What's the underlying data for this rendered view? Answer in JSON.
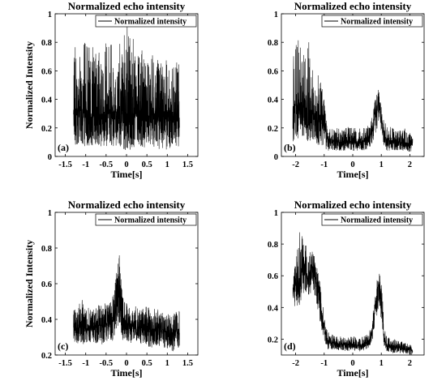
{
  "figure": {
    "background": "#ffffff",
    "line_color": "#000000"
  },
  "chart_data": [
    {
      "type": "line",
      "panel_label": "(a)",
      "title": "Normalized echo intensity",
      "xlabel": "Time[s]",
      "ylabel": "Normalized Intensity",
      "xlim": [
        -1.75,
        1.75
      ],
      "ylim": [
        0,
        1
      ],
      "xticks": [
        -1.5,
        -1,
        -0.5,
        0,
        0.5,
        1,
        1.5
      ],
      "xtick_labels": [
        "-1.5",
        "-1",
        "-0.5",
        "0",
        "0.5",
        "1",
        "1.5"
      ],
      "yticks": [
        0,
        0.2,
        0.4,
        0.6,
        0.8,
        1
      ],
      "ytick_labels": [
        "0",
        "0.2",
        "0.4",
        "0.6",
        "0.8",
        "1"
      ],
      "grid": false,
      "legend_position": "top-right",
      "series": [
        {
          "name": "Normalized intensity",
          "x": [
            -1.3,
            -1.2,
            -1.1,
            -1.0,
            -0.9,
            -0.8,
            -0.7,
            -0.6,
            -0.5,
            -0.4,
            -0.3,
            -0.2,
            -0.1,
            0.0,
            0.1,
            0.2,
            0.3,
            0.4,
            0.5,
            0.6,
            0.7,
            0.8,
            0.9,
            1.0,
            1.1,
            1.2,
            1.3
          ],
          "y": [
            0.28,
            0.33,
            0.27,
            0.34,
            0.29,
            0.3,
            0.31,
            0.28,
            0.33,
            0.3,
            0.32,
            0.34,
            0.36,
            0.3,
            0.28,
            0.3,
            0.29,
            0.31,
            0.27,
            0.3,
            0.29,
            0.28,
            0.3,
            0.27,
            0.28,
            0.26,
            0.27
          ],
          "y_min": [
            0.08,
            0.08,
            0.06,
            0.07,
            0.07,
            0.08,
            0.06,
            0.07,
            0.07,
            0.06,
            0.06,
            0.05,
            0.05,
            0.03,
            0.05,
            0.06,
            0.05,
            0.06,
            0.05,
            0.05,
            0.06,
            0.05,
            0.05,
            0.04,
            0.05,
            0.06,
            0.07
          ],
          "y_max": [
            0.75,
            0.8,
            0.72,
            0.85,
            0.75,
            0.78,
            0.72,
            0.75,
            0.82,
            0.78,
            0.82,
            0.88,
            0.94,
            0.96,
            0.9,
            0.78,
            0.8,
            0.75,
            0.72,
            0.73,
            0.7,
            0.7,
            0.72,
            0.68,
            0.66,
            0.65,
            0.68
          ]
        }
      ]
    },
    {
      "type": "line",
      "panel_label": "(b)",
      "title": "Normalized echo intensity",
      "xlabel": "Time[s]",
      "ylabel": "",
      "xlim": [
        -2.5,
        2.5
      ],
      "ylim": [
        0,
        1
      ],
      "xticks": [
        -2,
        -1,
        0,
        1,
        2
      ],
      "xtick_labels": [
        "-2",
        "-1",
        "0",
        "1",
        "2"
      ],
      "yticks": [
        0,
        0.2,
        0.4,
        0.6,
        0.8,
        1
      ],
      "ytick_labels": [
        "0",
        "0.2",
        "0.4",
        "0.6",
        "0.8",
        "1"
      ],
      "grid": false,
      "legend_position": "top-right",
      "series": [
        {
          "name": "Normalized intensity",
          "x": [
            -2.1,
            -2.0,
            -1.9,
            -1.8,
            -1.7,
            -1.6,
            -1.5,
            -1.4,
            -1.3,
            -1.2,
            -1.1,
            -1.0,
            -0.9,
            -0.8,
            -0.6,
            -0.4,
            -0.2,
            0.0,
            0.2,
            0.4,
            0.6,
            0.7,
            0.8,
            0.9,
            1.0,
            1.1,
            1.2,
            1.4,
            1.6,
            1.8,
            2.0,
            2.1
          ],
          "y": [
            0.33,
            0.35,
            0.36,
            0.38,
            0.34,
            0.35,
            0.33,
            0.32,
            0.3,
            0.29,
            0.27,
            0.2,
            0.12,
            0.11,
            0.1,
            0.1,
            0.11,
            0.1,
            0.1,
            0.11,
            0.14,
            0.2,
            0.3,
            0.38,
            0.3,
            0.14,
            0.11,
            0.1,
            0.1,
            0.1,
            0.09,
            0.08
          ],
          "y_min": [
            0.1,
            0.12,
            0.1,
            0.12,
            0.1,
            0.11,
            0.1,
            0.1,
            0.09,
            0.08,
            0.08,
            0.06,
            0.04,
            0.04,
            0.04,
            0.04,
            0.04,
            0.04,
            0.04,
            0.04,
            0.06,
            0.1,
            0.16,
            0.22,
            0.18,
            0.06,
            0.04,
            0.04,
            0.04,
            0.04,
            0.03,
            0.03
          ],
          "y_max": [
            0.72,
            0.78,
            0.82,
            0.85,
            0.75,
            0.95,
            0.72,
            0.62,
            0.58,
            0.57,
            0.5,
            0.4,
            0.22,
            0.2,
            0.2,
            0.2,
            0.21,
            0.2,
            0.2,
            0.2,
            0.24,
            0.3,
            0.44,
            0.48,
            0.4,
            0.24,
            0.22,
            0.2,
            0.19,
            0.2,
            0.18,
            0.15
          ]
        }
      ]
    },
    {
      "type": "line",
      "panel_label": "(c)",
      "title": "Normalized echo intensity",
      "xlabel": "Time[s]",
      "ylabel": "Normalized Intensity",
      "xlim": [
        -1.75,
        1.75
      ],
      "ylim": [
        0.2,
        1
      ],
      "xticks": [
        -1.5,
        -1,
        -0.5,
        0,
        0.5,
        1,
        1.5
      ],
      "xtick_labels": [
        "-1.5",
        "-1",
        "-0.5",
        "0",
        "0.5",
        "1",
        "1.5"
      ],
      "yticks": [
        0.2,
        0.4,
        0.6,
        0.8,
        1
      ],
      "ytick_labels": [
        "0.2",
        "0.4",
        "0.6",
        "0.8",
        "1"
      ],
      "grid": false,
      "legend_position": "top-right",
      "series": [
        {
          "name": "Normalized intensity",
          "x": [
            -1.3,
            -1.2,
            -1.1,
            -1.0,
            -0.9,
            -0.8,
            -0.7,
            -0.6,
            -0.5,
            -0.4,
            -0.3,
            -0.25,
            -0.2,
            -0.15,
            -0.1,
            0.0,
            0.1,
            0.2,
            0.3,
            0.4,
            0.5,
            0.6,
            0.7,
            0.8,
            0.9,
            1.0,
            1.1,
            1.2,
            1.3
          ],
          "y": [
            0.36,
            0.35,
            0.37,
            0.34,
            0.36,
            0.35,
            0.37,
            0.36,
            0.38,
            0.37,
            0.42,
            0.48,
            0.58,
            0.5,
            0.42,
            0.38,
            0.36,
            0.37,
            0.35,
            0.36,
            0.36,
            0.34,
            0.35,
            0.35,
            0.34,
            0.33,
            0.32,
            0.33,
            0.33
          ],
          "y_min": [
            0.28,
            0.26,
            0.27,
            0.25,
            0.27,
            0.26,
            0.27,
            0.26,
            0.27,
            0.26,
            0.29,
            0.32,
            0.36,
            0.33,
            0.28,
            0.27,
            0.26,
            0.27,
            0.26,
            0.26,
            0.25,
            0.24,
            0.25,
            0.24,
            0.24,
            0.23,
            0.2,
            0.24,
            0.24
          ],
          "y_max": [
            0.45,
            0.47,
            0.52,
            0.45,
            0.48,
            0.47,
            0.5,
            0.48,
            0.5,
            0.5,
            0.58,
            0.65,
            0.86,
            0.68,
            0.56,
            0.5,
            0.47,
            0.48,
            0.46,
            0.47,
            0.5,
            0.45,
            0.46,
            0.46,
            0.45,
            0.44,
            0.42,
            0.44,
            0.45
          ]
        }
      ]
    },
    {
      "type": "line",
      "panel_label": "(d)",
      "title": "Normalized echo intensity",
      "xlabel": "Time[s]",
      "ylabel": "",
      "xlim": [
        -2.5,
        2.5
      ],
      "ylim": [
        0.1,
        1
      ],
      "xticks": [
        -2,
        -1,
        0,
        1,
        2
      ],
      "xtick_labels": [
        "-2",
        "-1",
        "0",
        "1",
        "2"
      ],
      "yticks": [
        0.2,
        0.4,
        0.6,
        0.8,
        1
      ],
      "ytick_labels": [
        "0.2",
        "0.4",
        "0.6",
        "0.8",
        "1"
      ],
      "grid": false,
      "legend_position": "top-right",
      "series": [
        {
          "name": "Normalized intensity",
          "x": [
            -2.1,
            -2.0,
            -1.9,
            -1.8,
            -1.7,
            -1.6,
            -1.5,
            -1.4,
            -1.3,
            -1.2,
            -1.1,
            -1.0,
            -0.9,
            -0.8,
            -0.6,
            -0.4,
            -0.2,
            0.0,
            0.2,
            0.4,
            0.6,
            0.7,
            0.8,
            0.9,
            1.0,
            1.1,
            1.2,
            1.4,
            1.6,
            1.8,
            2.0,
            2.1
          ],
          "y": [
            0.48,
            0.55,
            0.52,
            0.62,
            0.65,
            0.6,
            0.62,
            0.66,
            0.58,
            0.5,
            0.38,
            0.26,
            0.2,
            0.18,
            0.17,
            0.17,
            0.16,
            0.17,
            0.16,
            0.17,
            0.2,
            0.28,
            0.42,
            0.55,
            0.45,
            0.2,
            0.16,
            0.15,
            0.15,
            0.14,
            0.13,
            0.13
          ],
          "y_min": [
            0.38,
            0.42,
            0.4,
            0.45,
            0.5,
            0.45,
            0.48,
            0.5,
            0.45,
            0.36,
            0.26,
            0.18,
            0.14,
            0.13,
            0.13,
            0.13,
            0.12,
            0.13,
            0.12,
            0.13,
            0.15,
            0.2,
            0.3,
            0.4,
            0.3,
            0.14,
            0.12,
            0.11,
            0.11,
            0.11,
            0.1,
            0.1
          ],
          "y_max": [
            0.6,
            0.68,
            0.92,
            0.85,
            0.88,
            0.75,
            0.76,
            0.82,
            0.7,
            0.62,
            0.5,
            0.34,
            0.26,
            0.24,
            0.22,
            0.22,
            0.21,
            0.22,
            0.21,
            0.22,
            0.26,
            0.36,
            0.52,
            0.63,
            0.6,
            0.28,
            0.22,
            0.2,
            0.2,
            0.18,
            0.17,
            0.16
          ]
        }
      ]
    }
  ]
}
